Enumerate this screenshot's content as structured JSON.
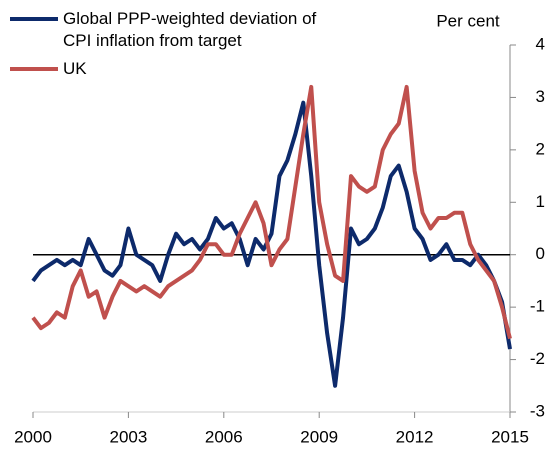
{
  "chart_data": {
    "type": "line",
    "y_label": "Per cent",
    "x": [
      2000,
      2000.25,
      2000.5,
      2000.75,
      2001,
      2001.25,
      2001.5,
      2001.75,
      2002,
      2002.25,
      2002.5,
      2002.75,
      2003,
      2003.25,
      2003.5,
      2003.75,
      2004,
      2004.25,
      2004.5,
      2004.75,
      2005,
      2005.25,
      2005.5,
      2005.75,
      2006,
      2006.25,
      2006.5,
      2006.75,
      2007,
      2007.25,
      2007.5,
      2007.75,
      2008,
      2008.25,
      2008.5,
      2008.75,
      2009,
      2009.25,
      2009.5,
      2009.75,
      2010,
      2010.25,
      2010.5,
      2010.75,
      2011,
      2011.25,
      2011.5,
      2011.75,
      2012,
      2012.25,
      2012.5,
      2012.75,
      2013,
      2013.25,
      2013.5,
      2013.75,
      2014,
      2014.25,
      2014.5,
      2014.75,
      2015
    ],
    "series": [
      {
        "name": "Global PPP-weighted deviation of CPI inflation from target",
        "color": "#0d2a6b",
        "values": [
          -0.5,
          -0.3,
          -0.2,
          -0.1,
          -0.2,
          -0.1,
          -0.2,
          0.3,
          0.0,
          -0.3,
          -0.4,
          -0.2,
          0.5,
          0.0,
          -0.1,
          -0.2,
          -0.5,
          0.0,
          0.4,
          0.2,
          0.3,
          0.1,
          0.3,
          0.7,
          0.5,
          0.6,
          0.3,
          -0.2,
          0.3,
          0.1,
          0.4,
          1.5,
          1.8,
          2.3,
          2.9,
          1.5,
          -0.2,
          -1.5,
          -2.5,
          -1.2,
          0.5,
          0.2,
          0.3,
          0.5,
          0.9,
          1.5,
          1.7,
          1.2,
          0.5,
          0.3,
          -0.1,
          0.0,
          0.2,
          -0.1,
          -0.1,
          -0.2,
          0.0,
          -0.2,
          -0.5,
          -0.9,
          -1.8
        ]
      },
      {
        "name": "UK",
        "color": "#c0504d",
        "values": [
          -1.2,
          -1.4,
          -1.3,
          -1.1,
          -1.2,
          -0.6,
          -0.3,
          -0.8,
          -0.7,
          -1.2,
          -0.8,
          -0.5,
          -0.6,
          -0.7,
          -0.6,
          -0.7,
          -0.8,
          -0.6,
          -0.5,
          -0.4,
          -0.3,
          -0.1,
          0.2,
          0.2,
          0.0,
          0.0,
          0.4,
          0.7,
          1.0,
          0.6,
          -0.2,
          0.1,
          0.3,
          1.3,
          2.3,
          3.2,
          1.0,
          0.2,
          -0.4,
          -0.5,
          1.5,
          1.3,
          1.2,
          1.3,
          2.0,
          2.3,
          2.5,
          3.2,
          1.6,
          0.8,
          0.5,
          0.7,
          0.7,
          0.8,
          0.8,
          0.2,
          -0.1,
          -0.3,
          -0.5,
          -1.0,
          -1.6
        ]
      }
    ],
    "xlim": [
      2000,
      2015
    ],
    "xticks": [
      2000,
      2003,
      2006,
      2009,
      2012,
      2015
    ],
    "ylim": [
      -3,
      4
    ],
    "yticks": [
      4,
      3,
      2,
      1,
      0,
      -1,
      -2,
      -3
    ],
    "zero_line": 0
  }
}
